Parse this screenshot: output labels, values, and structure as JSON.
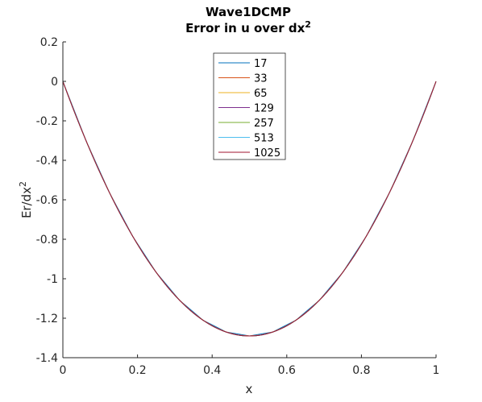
{
  "chart_data": {
    "type": "line",
    "title": "Wave1DCMP",
    "subtitle": "Error in u over dx",
    "subtitle_superscript": "2",
    "xlabel": "x",
    "ylabel": "Er/dx",
    "ylabel_superscript": "2",
    "xlim": [
      0,
      1
    ],
    "ylim": [
      -1.4,
      0.2
    ],
    "xticks": [
      0,
      0.2,
      0.4,
      0.6,
      0.8,
      1
    ],
    "xtick_labels": [
      "0",
      "0.2",
      "0.4",
      "0.6",
      "0.8",
      "1"
    ],
    "yticks": [
      -1.4,
      -1.2,
      -1,
      -0.8,
      -0.6,
      -0.4,
      -0.2,
      0,
      0.2
    ],
    "ytick_labels": [
      "-1.4",
      "-1.2",
      "-1",
      "-0.8",
      "-0.6",
      "-0.4",
      "-0.2",
      "0",
      "0.2"
    ],
    "grid": false,
    "legend_position": "top-center",
    "curve": "y = 5.16 * x * (x - 1)",
    "series": [
      {
        "name": "17",
        "points": 17,
        "color": "#0072BD"
      },
      {
        "name": "33",
        "points": 33,
        "color": "#D95319"
      },
      {
        "name": "65",
        "points": 65,
        "color": "#EDB120"
      },
      {
        "name": "129",
        "points": 129,
        "color": "#7E2F8E"
      },
      {
        "name": "257",
        "points": 257,
        "color": "#77AC30"
      },
      {
        "name": "513",
        "points": 513,
        "color": "#4DBEEE"
      },
      {
        "name": "1025",
        "points": 1025,
        "color": "#A2142F"
      }
    ]
  }
}
